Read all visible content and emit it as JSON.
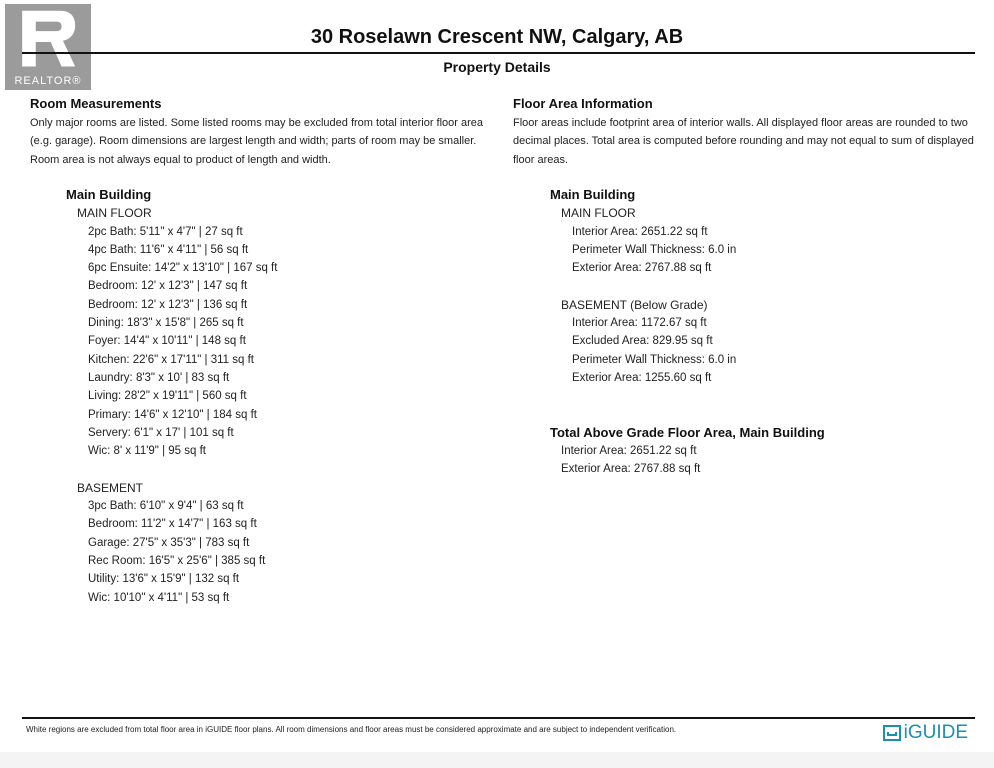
{
  "logo": {
    "text": "REALTOR®"
  },
  "header": {
    "title": "30 Roselawn Crescent NW, Calgary, AB",
    "subtitle": "Property Details"
  },
  "left": {
    "heading": "Room Measurements",
    "paragraph": "Only major rooms are listed. Some listed rooms may be excluded from total interior floor area (e.g. garage). Room dimensions are largest length and width; parts of room may be smaller. Room area is not always equal to product of length and width.",
    "building": "Main Building",
    "main_floor": {
      "label": "MAIN FLOOR",
      "rooms": [
        "2pc Bath: 5'11\" x 4'7\" | 27 sq ft",
        "4pc Bath: 11'6\" x 4'11\" | 56 sq ft",
        "6pc Ensuite: 14'2\" x 13'10\" | 167 sq ft",
        "Bedroom: 12' x 12'3\" | 147 sq ft",
        "Bedroom: 12' x 12'3\" | 136 sq ft",
        "Dining: 18'3\" x 15'8\" | 265 sq ft",
        "Foyer: 14'4\" x 10'11\" | 148 sq ft",
        "Kitchen: 22'6\" x 17'11\" | 311 sq ft",
        "Laundry: 8'3\" x 10' | 83 sq ft",
        "Living: 28'2\" x 19'11\" | 560 sq ft",
        "Primary: 14'6\" x 12'10\" | 184 sq ft",
        "Servery: 6'1\" x 17' | 101 sq ft",
        "Wic: 8' x 11'9\" | 95 sq ft"
      ]
    },
    "basement": {
      "label": "BASEMENT",
      "rooms": [
        "3pc Bath: 6'10\" x 9'4\" | 63 sq ft",
        "Bedroom: 11'2\" x 14'7\" | 163 sq ft",
        "Garage: 27'5\" x 35'3\" | 783 sq ft",
        "Rec Room: 16'5\" x 25'6\" | 385 sq ft",
        "Utility: 13'6\" x 15'9\" | 132 sq ft",
        "Wic: 10'10\" x 4'11\" | 53 sq ft"
      ]
    }
  },
  "right": {
    "heading": "Floor Area Information",
    "paragraph": "Floor areas include footprint area of interior walls. All displayed floor areas are rounded to two decimal places. Total area is computed before rounding and may not equal to sum of displayed floor areas.",
    "building": "Main Building",
    "main_floor": {
      "label": "MAIN FLOOR",
      "items": [
        "Interior Area: 2651.22 sq ft",
        "Perimeter Wall Thickness: 6.0 in",
        "Exterior Area: 2767.88 sq ft"
      ]
    },
    "basement": {
      "label": "BASEMENT (Below Grade)",
      "items": [
        "Interior Area: 1172.67 sq ft",
        "Excluded Area: 829.95 sq ft",
        "Perimeter Wall Thickness: 6.0 in",
        "Exterior Area: 1255.60 sq ft"
      ]
    },
    "total": {
      "label": "Total Above Grade Floor Area, Main Building",
      "items": [
        "Interior Area: 2651.22 sq ft",
        "Exterior Area: 2767.88 sq ft"
      ]
    }
  },
  "footer": {
    "disclaimer": "White regions are excluded from total floor area in iGUIDE floor plans. All room dimensions and floor areas must be considered approximate and are subject to independent verification.",
    "brand": "iGUIDE"
  }
}
